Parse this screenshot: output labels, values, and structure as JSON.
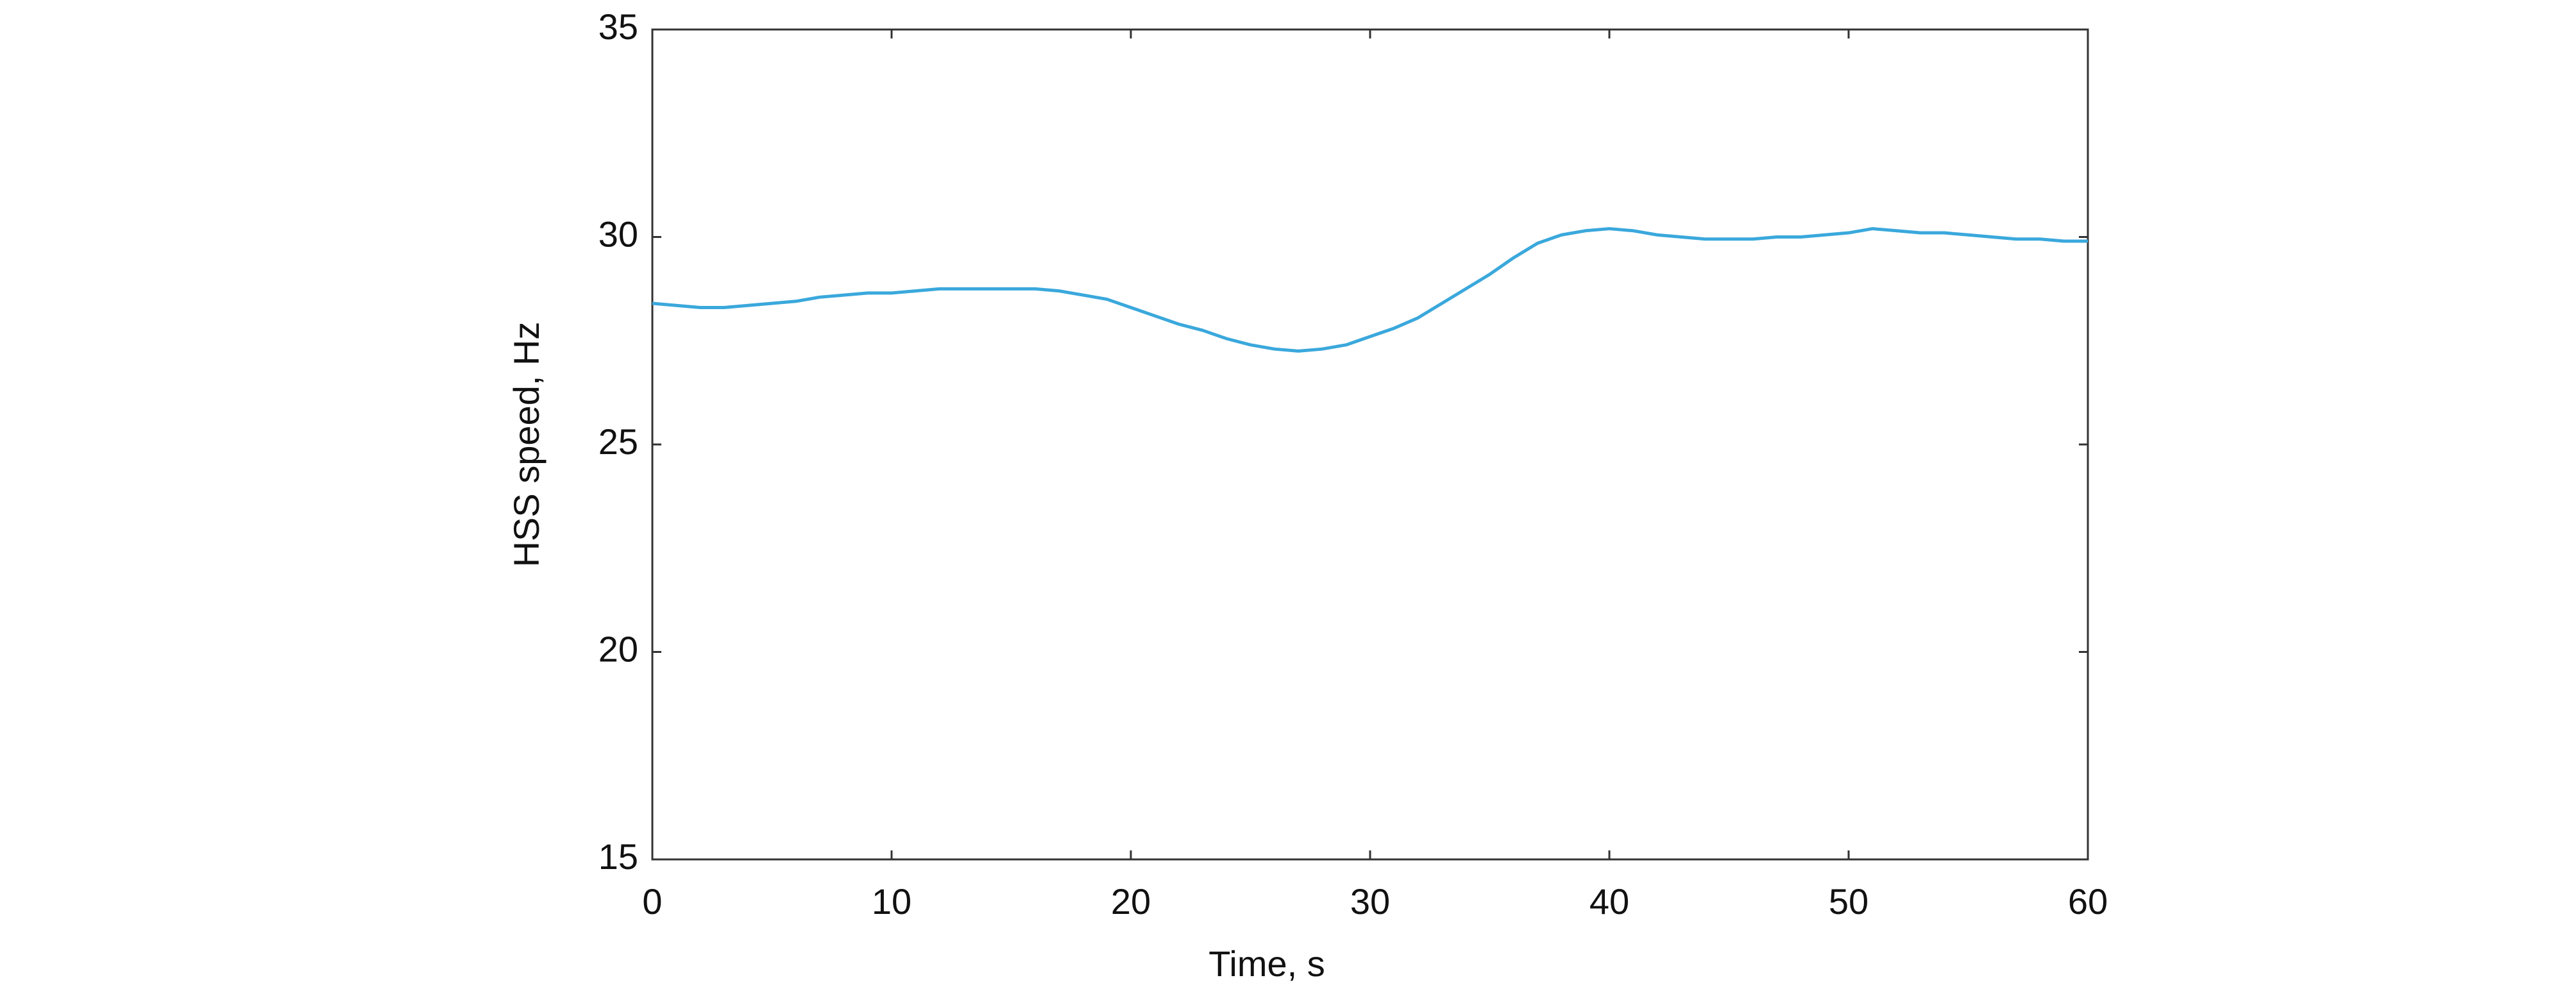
{
  "chart_data": {
    "type": "line",
    "xlabel": "Time, s",
    "ylabel": "HSS speed, Hz",
    "x": [
      0,
      1,
      2,
      3,
      4,
      5,
      6,
      7,
      8,
      9,
      10,
      11,
      12,
      13,
      14,
      15,
      16,
      17,
      18,
      19,
      20,
      21,
      22,
      23,
      24,
      25,
      26,
      27,
      28,
      29,
      30,
      31,
      32,
      33,
      34,
      35,
      36,
      37,
      38,
      39,
      40,
      41,
      42,
      43,
      44,
      45,
      46,
      47,
      48,
      49,
      50,
      51,
      52,
      53,
      54,
      55,
      56,
      57,
      58,
      59,
      60
    ],
    "series": [
      {
        "color": "#3aa8dc",
        "values": [
          28.4,
          28.35,
          28.3,
          28.3,
          28.35,
          28.4,
          28.45,
          28.55,
          28.6,
          28.65,
          28.65,
          28.7,
          28.75,
          28.75,
          28.75,
          28.75,
          28.75,
          28.7,
          28.6,
          28.5,
          28.3,
          28.1,
          27.9,
          27.75,
          27.55,
          27.4,
          27.3,
          27.25,
          27.3,
          27.4,
          27.6,
          27.8,
          28.05,
          28.4,
          28.75,
          29.1,
          29.5,
          29.85,
          30.05,
          30.15,
          30.2,
          30.15,
          30.05,
          30.0,
          29.95,
          29.95,
          29.95,
          30.0,
          30.0,
          30.05,
          30.1,
          30.2,
          30.15,
          30.1,
          30.1,
          30.05,
          30.0,
          29.95,
          29.95,
          29.9,
          29.9
        ]
      }
    ],
    "xlim": [
      0,
      60
    ],
    "xticks": [
      0,
      10,
      20,
      30,
      40,
      50,
      60
    ],
    "ylim": [
      15,
      35
    ],
    "yticks": [
      15,
      20,
      25,
      30,
      35
    ]
  }
}
